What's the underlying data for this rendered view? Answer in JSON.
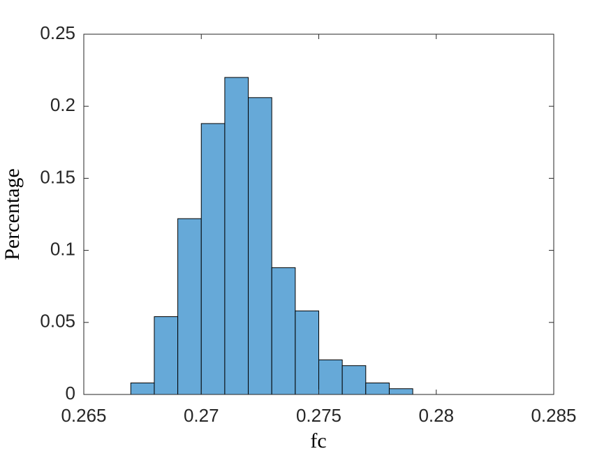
{
  "chart_data": {
    "type": "histogram",
    "xlabel": "fc",
    "ylabel": "Percentage",
    "bins": [
      0.267,
      0.268,
      0.269,
      0.27,
      0.271,
      0.272,
      0.273,
      0.274,
      0.275,
      0.276,
      0.277,
      0.278,
      0.279
    ],
    "values": [
      0.008,
      0.054,
      0.122,
      0.188,
      0.22,
      0.206,
      0.088,
      0.058,
      0.024,
      0.02,
      0.008,
      0.004
    ],
    "color": "#66a9d8",
    "xlim": [
      0.265,
      0.285
    ],
    "xticks": [
      0.265,
      0.27,
      0.275,
      0.28,
      0.285
    ],
    "ylim": [
      0,
      0.25
    ],
    "yticks": [
      0,
      0.05,
      0.1,
      0.15,
      0.2,
      0.25
    ]
  }
}
